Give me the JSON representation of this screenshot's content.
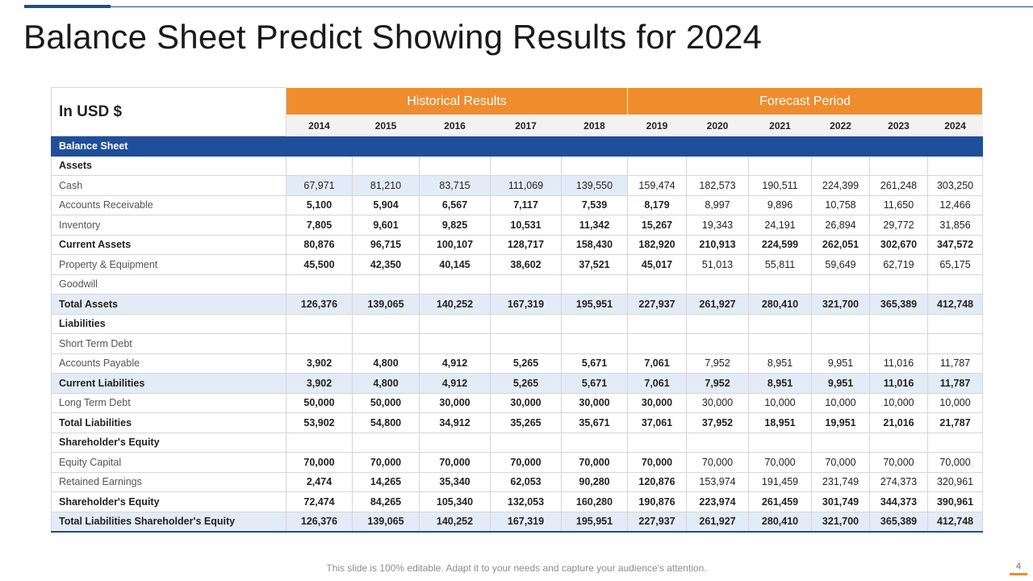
{
  "title": "Balance Sheet Predict Showing Results for 2024",
  "table": {
    "corner_label": "In USD $",
    "group_historical": "Historical Results",
    "group_forecast": "Forecast Period",
    "years": [
      "2014",
      "2015",
      "2016",
      "2017",
      "2018",
      "2019",
      "2020",
      "2021",
      "2022",
      "2023",
      "2024"
    ],
    "section_label": "Balance Sheet",
    "rows": [
      {
        "label": "Assets",
        "values": [
          "",
          "",
          "",
          "",
          "",
          "",
          "",
          "",
          "",
          "",
          ""
        ]
      },
      {
        "label": "Cash",
        "values": [
          "67,971",
          "81,210",
          "83,715",
          "111,069",
          "139,550",
          "159,474",
          "182,573",
          "190,511",
          "224,399",
          "261,248",
          "303,250"
        ]
      },
      {
        "label": "Accounts Receivable",
        "values": [
          "5,100",
          "5,904",
          "6,567",
          "7,117",
          "7,539",
          "8,179",
          "8,997",
          "9,896",
          "10,758",
          "11,650",
          "12,466"
        ]
      },
      {
        "label": "Inventory",
        "values": [
          "7,805",
          "9,601",
          "9,825",
          "10,531",
          "11,342",
          "15,267",
          "19,343",
          "24,191",
          "26,894",
          "29,772",
          "31,856"
        ]
      },
      {
        "label": "Current Assets",
        "values": [
          "80,876",
          "96,715",
          "100,107",
          "128,717",
          "158,430",
          "182,920",
          "210,913",
          "224,599",
          "262,051",
          "302,670",
          "347,572"
        ]
      },
      {
        "label": "Property & Equipment",
        "values": [
          "45,500",
          "42,350",
          "40,145",
          "38,602",
          "37,521",
          "45,017",
          "51,013",
          "55,811",
          "59,649",
          "62,719",
          "65,175"
        ]
      },
      {
        "label": "Goodwill",
        "values": [
          "",
          "",
          "",
          "",
          "",
          "",
          "",
          "",
          "",
          "",
          ""
        ]
      },
      {
        "label": "Total Assets",
        "values": [
          "126,376",
          "139,065",
          "140,252",
          "167,319",
          "195,951",
          "227,937",
          "261,927",
          "280,410",
          "321,700",
          "365,389",
          "412,748"
        ]
      },
      {
        "label": "Liabilities",
        "values": [
          "",
          "",
          "",
          "",
          "",
          "",
          "",
          "",
          "",
          "",
          ""
        ]
      },
      {
        "label": "Short Term Debt",
        "values": [
          "",
          "",
          "",
          "",
          "",
          "",
          "",
          "",
          "",
          "",
          ""
        ]
      },
      {
        "label": "Accounts Payable",
        "values": [
          "3,902",
          "4,800",
          "4,912",
          "5,265",
          "5,671",
          "7,061",
          "7,952",
          "8,951",
          "9,951",
          "11,016",
          "11,787"
        ]
      },
      {
        "label": "Current Liabilities",
        "values": [
          "3,902",
          "4,800",
          "4,912",
          "5,265",
          "5,671",
          "7,061",
          "7,952",
          "8,951",
          "9,951",
          "11,016",
          "11,787"
        ]
      },
      {
        "label": "Long Term Debt",
        "values": [
          "50,000",
          "50,000",
          "30,000",
          "30,000",
          "30,000",
          "30,000",
          "30,000",
          "10,000",
          "10,000",
          "10,000",
          "10,000"
        ]
      },
      {
        "label": "Total Liabilities",
        "values": [
          "53,902",
          "54,800",
          "34,912",
          "35,265",
          "35,671",
          "37,061",
          "37,952",
          "18,951",
          "19,951",
          "21,016",
          "21,787"
        ]
      },
      {
        "label": "Shareholder's Equity",
        "values": [
          "",
          "",
          "",
          "",
          "",
          "",
          "",
          "",
          "",
          "",
          ""
        ]
      },
      {
        "label": "Equity Capital",
        "values": [
          "70,000",
          "70,000",
          "70,000",
          "70,000",
          "70,000",
          "70,000",
          "70,000",
          "70,000",
          "70,000",
          "70,000",
          "70,000"
        ]
      },
      {
        "label": "Retained Earnings",
        "values": [
          "2,474",
          "14,265",
          "35,340",
          "62,053",
          "90,280",
          "120,876",
          "153,974",
          "191,459",
          "231,749",
          "274,373",
          "320,961"
        ]
      },
      {
        "label": "Shareholder's Equity",
        "values": [
          "72,474",
          "84,265",
          "105,340",
          "132,053",
          "160,280",
          "190,876",
          "223,974",
          "261,459",
          "301,749",
          "344,373",
          "390,961"
        ]
      },
      {
        "label": "Total Liabilities Shareholder's Equity",
        "values": [
          "126,376",
          "139,065",
          "140,252",
          "167,319",
          "195,951",
          "227,937",
          "261,927",
          "280,410",
          "321,700",
          "365,389",
          "412,748"
        ]
      }
    ]
  },
  "footer": "This slide is 100% editable. Adapt it to your needs and capture your audience's attention.",
  "page_number": "4",
  "colors": {
    "accent_orange": "#ef8c2e",
    "accent_blue": "#1f4e9c",
    "highlight": "#e3ebf7"
  }
}
